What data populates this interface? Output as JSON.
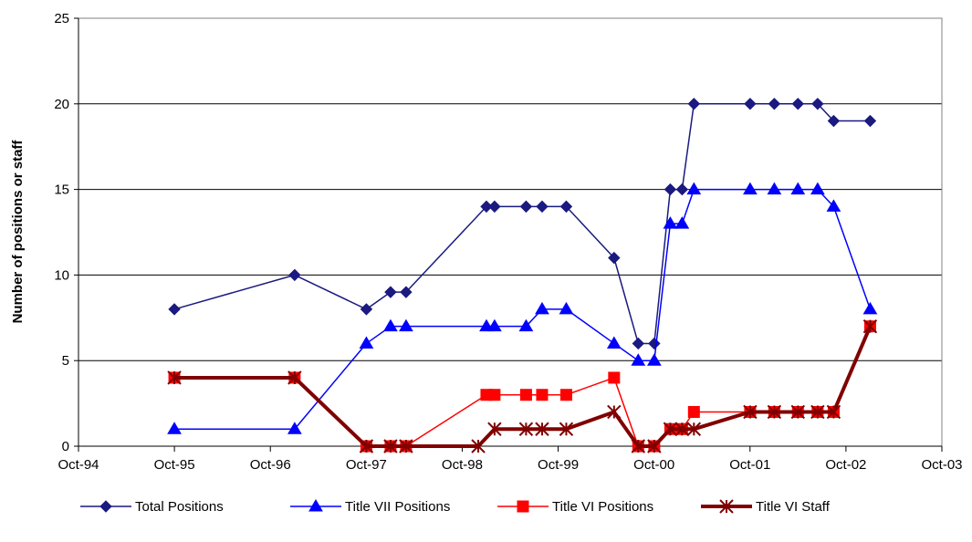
{
  "chart_data": {
    "type": "line",
    "title": "",
    "xlabel": "",
    "ylabel": "Number of positions or staff",
    "x_ticks": [
      "Oct-94",
      "Oct-95",
      "Oct-96",
      "Oct-97",
      "Oct-98",
      "Oct-99",
      "Oct-00",
      "Oct-01",
      "Oct-02",
      "Oct-03"
    ],
    "xlim": [
      "1994-10-01",
      "2003-10-01"
    ],
    "y_ticks": [
      0,
      5,
      10,
      15,
      20,
      25
    ],
    "ylim": [
      0,
      25
    ],
    "grid": "horizontal",
    "legend_position": "bottom",
    "series": [
      {
        "name": "Total Positions",
        "color": "#1a1a80",
        "marker": "diamond",
        "points": [
          [
            "1995-10-01",
            8
          ],
          [
            "1997-01-01",
            10
          ],
          [
            "1997-10-01",
            8
          ],
          [
            "1998-01-01",
            9
          ],
          [
            "1998-03-01",
            9
          ],
          [
            "1999-01-01",
            14
          ],
          [
            "1999-02-01",
            14
          ],
          [
            "1999-06-01",
            14
          ],
          [
            "1999-08-01",
            14
          ],
          [
            "1999-11-01",
            14
          ],
          [
            "2000-05-01",
            11
          ],
          [
            "2000-08-01",
            6
          ],
          [
            "2000-10-01",
            6
          ],
          [
            "2000-12-01",
            15
          ],
          [
            "2001-01-15",
            15
          ],
          [
            "2001-03-01",
            20
          ],
          [
            "2001-10-01",
            20
          ],
          [
            "2002-01-01",
            20
          ],
          [
            "2002-04-01",
            20
          ],
          [
            "2002-06-15",
            20
          ],
          [
            "2002-08-15",
            19
          ],
          [
            "2003-01-01",
            19
          ]
        ]
      },
      {
        "name": "Title VII Positions",
        "color": "#0000ff",
        "marker": "triangle",
        "points": [
          [
            "1995-10-01",
            1
          ],
          [
            "1997-01-01",
            1
          ],
          [
            "1997-10-01",
            6
          ],
          [
            "1998-01-01",
            7
          ],
          [
            "1998-03-01",
            7
          ],
          [
            "1999-01-01",
            7
          ],
          [
            "1999-02-01",
            7
          ],
          [
            "1999-06-01",
            7
          ],
          [
            "1999-08-01",
            8
          ],
          [
            "1999-11-01",
            8
          ],
          [
            "2000-05-01",
            6
          ],
          [
            "2000-08-01",
            5
          ],
          [
            "2000-10-01",
            5
          ],
          [
            "2000-12-01",
            13
          ],
          [
            "2001-01-15",
            13
          ],
          [
            "2001-03-01",
            15
          ],
          [
            "2001-10-01",
            15
          ],
          [
            "2002-01-01",
            15
          ],
          [
            "2002-04-01",
            15
          ],
          [
            "2002-06-15",
            15
          ],
          [
            "2002-08-15",
            14
          ],
          [
            "2003-01-01",
            8
          ]
        ]
      },
      {
        "name": "Title VI Positions",
        "color": "#ff0000",
        "marker": "square",
        "points": [
          [
            "1995-10-01",
            4
          ],
          [
            "1997-01-01",
            4
          ],
          [
            "1997-10-01",
            0
          ],
          [
            "1998-01-01",
            0
          ],
          [
            "1998-03-01",
            0
          ],
          [
            "1999-01-01",
            3
          ],
          [
            "1999-02-01",
            3
          ],
          [
            "1999-06-01",
            3
          ],
          [
            "1999-08-01",
            3
          ],
          [
            "1999-11-01",
            3
          ],
          [
            "2000-05-01",
            4
          ],
          [
            "2000-08-01",
            0
          ],
          [
            "2000-10-01",
            0
          ],
          [
            "2000-12-01",
            1
          ],
          [
            "2001-01-15",
            1
          ],
          [
            "2001-03-01",
            2
          ],
          [
            "2001-10-01",
            2
          ],
          [
            "2002-01-01",
            2
          ],
          [
            "2002-04-01",
            2
          ],
          [
            "2002-06-15",
            2
          ],
          [
            "2002-08-15",
            2
          ],
          [
            "2003-01-01",
            7
          ]
        ]
      },
      {
        "name": "Title VI Staff",
        "color": "#800000",
        "marker": "asterisk",
        "points": [
          [
            "1995-10-01",
            4
          ],
          [
            "1997-01-01",
            4
          ],
          [
            "1997-10-01",
            0
          ],
          [
            "1998-01-01",
            0
          ],
          [
            "1998-03-01",
            0
          ],
          [
            "1998-12-01",
            0
          ],
          [
            "1999-02-01",
            1
          ],
          [
            "1999-06-01",
            1
          ],
          [
            "1999-08-01",
            1
          ],
          [
            "1999-11-01",
            1
          ],
          [
            "2000-05-01",
            2
          ],
          [
            "2000-08-01",
            0
          ],
          [
            "2000-10-01",
            0
          ],
          [
            "2000-12-01",
            1
          ],
          [
            "2001-01-15",
            1
          ],
          [
            "2001-03-01",
            1
          ],
          [
            "2001-10-01",
            2
          ],
          [
            "2002-01-01",
            2
          ],
          [
            "2002-04-01",
            2
          ],
          [
            "2002-06-15",
            2
          ],
          [
            "2002-08-15",
            2
          ],
          [
            "2003-01-01",
            7
          ]
        ]
      }
    ]
  }
}
